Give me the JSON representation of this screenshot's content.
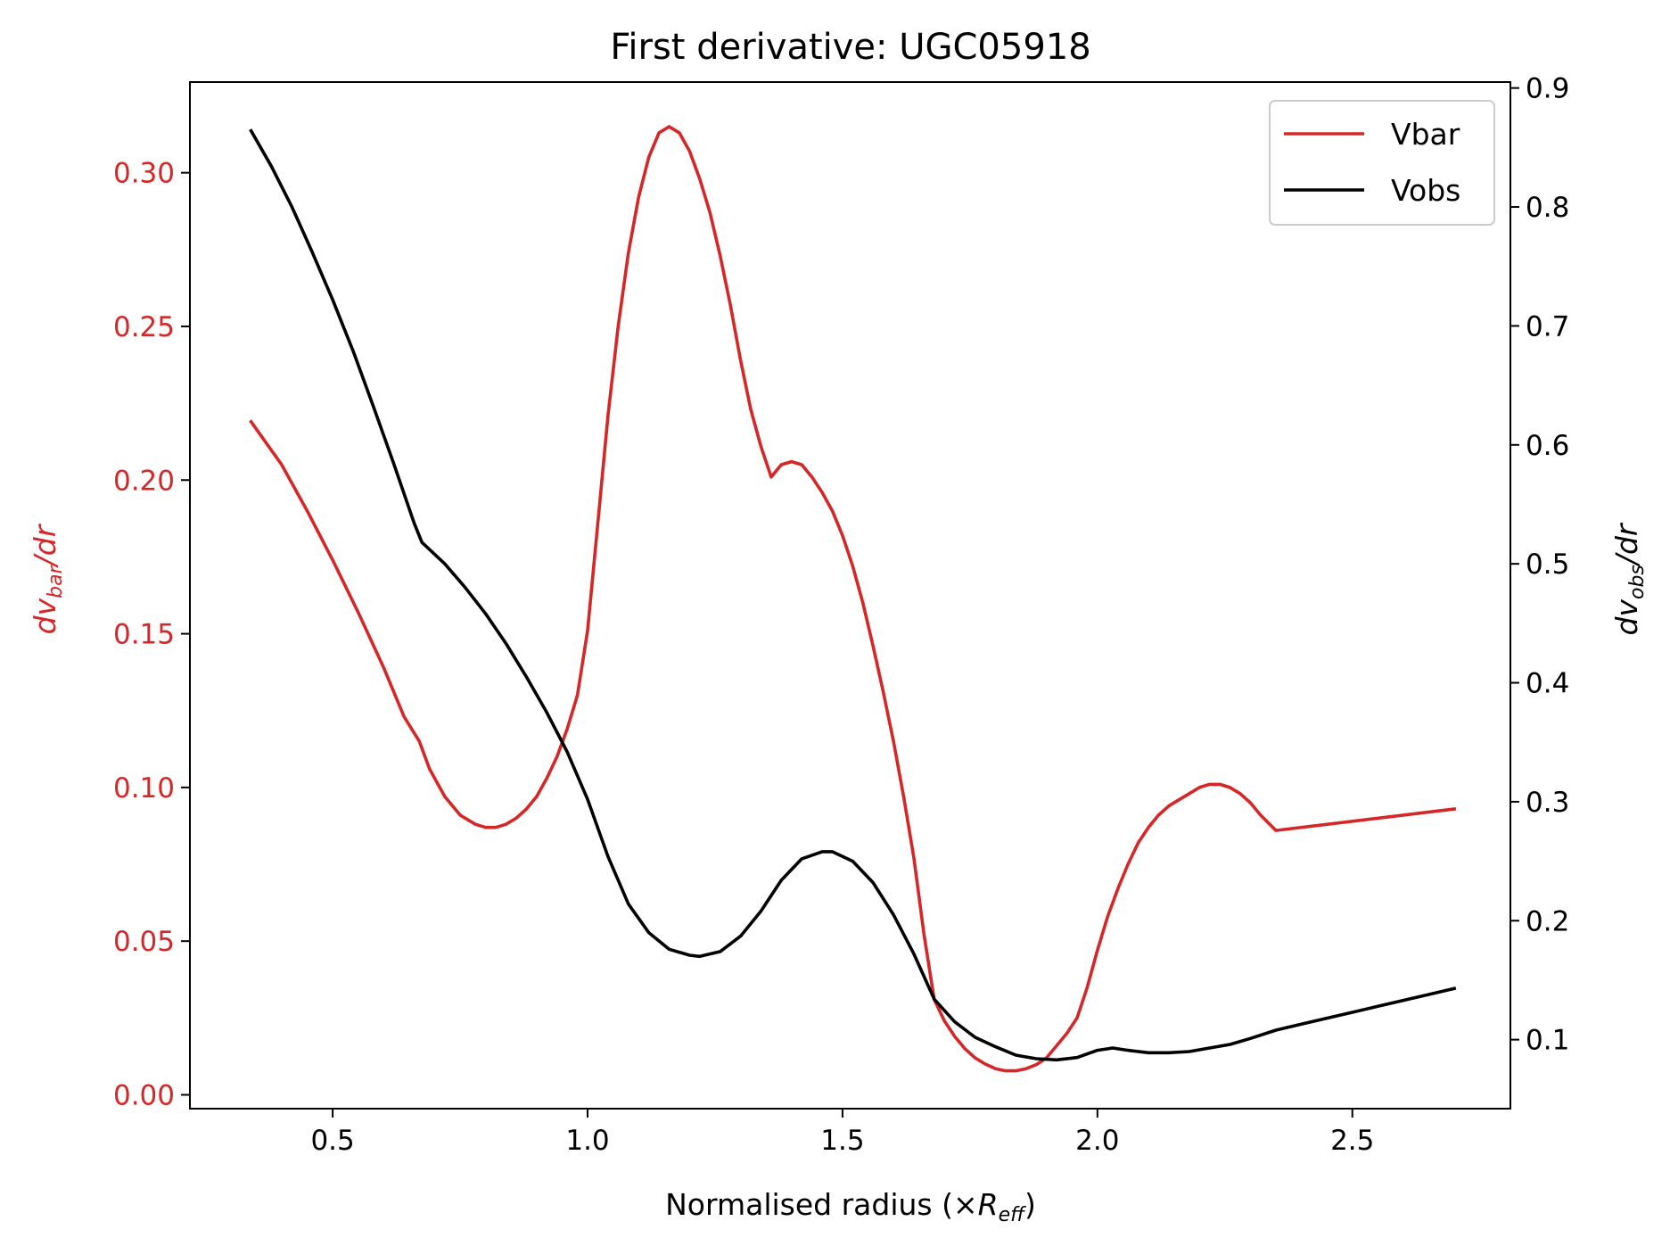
{
  "chart_data": {
    "type": "line",
    "title": "First derivative: UGC05918",
    "xlabel": {
      "prefix": "Normalised radius (×",
      "var": "R",
      "sub": "eff",
      "suffix": ")"
    },
    "ylabel_left": {
      "d": "d",
      "var": "v",
      "sub": "bar",
      "tail": "/dr"
    },
    "ylabel_right": {
      "d": "d",
      "var": "v",
      "sub": "obs",
      "tail": "/dr"
    },
    "xlim": [
      0.22,
      2.81
    ],
    "ylim_left": [
      -0.0045,
      0.3295
    ],
    "ylim_right": [
      0.042,
      0.905
    ],
    "xticks": [
      0.5,
      1.0,
      1.5,
      2.0,
      2.5
    ],
    "xtick_labels": [
      "0.5",
      "1.0",
      "1.5",
      "2.0",
      "2.5"
    ],
    "yticks_left": [
      0.0,
      0.05,
      0.1,
      0.15,
      0.2,
      0.25,
      0.3
    ],
    "ytick_labels_left": [
      "0.00",
      "0.05",
      "0.10",
      "0.15",
      "0.20",
      "0.25",
      "0.30"
    ],
    "yticks_right": [
      0.1,
      0.2,
      0.3,
      0.4,
      0.5,
      0.6,
      0.7,
      0.8,
      0.9
    ],
    "ytick_labels_right": [
      "0.1",
      "0.2",
      "0.3",
      "0.4",
      "0.5",
      "0.6",
      "0.7",
      "0.8",
      "0.9"
    ],
    "legend_position": "top-right",
    "grid": false,
    "series": [
      {
        "name": "Vbar",
        "axis": "left",
        "color": "#d62728",
        "x": [
          0.34,
          0.4,
          0.45,
          0.5,
          0.55,
          0.6,
          0.64,
          0.67,
          0.69,
          0.72,
          0.75,
          0.78,
          0.8,
          0.82,
          0.84,
          0.86,
          0.88,
          0.9,
          0.92,
          0.94,
          0.96,
          0.98,
          1.0,
          1.02,
          1.04,
          1.06,
          1.08,
          1.1,
          1.12,
          1.14,
          1.16,
          1.18,
          1.2,
          1.22,
          1.24,
          1.26,
          1.28,
          1.3,
          1.32,
          1.34,
          1.36,
          1.38,
          1.4,
          1.42,
          1.44,
          1.46,
          1.48,
          1.5,
          1.52,
          1.54,
          1.56,
          1.58,
          1.6,
          1.62,
          1.64,
          1.66,
          1.68,
          1.7,
          1.72,
          1.74,
          1.76,
          1.78,
          1.8,
          1.82,
          1.84,
          1.86,
          1.88,
          1.9,
          1.92,
          1.94,
          1.96,
          1.98,
          2.0,
          2.02,
          2.04,
          2.06,
          2.08,
          2.1,
          2.12,
          2.14,
          2.16,
          2.18,
          2.2,
          2.22,
          2.24,
          2.26,
          2.28,
          2.3,
          2.32,
          2.35,
          2.7
        ],
        "values": [
          0.219,
          0.205,
          0.19,
          0.174,
          0.157,
          0.139,
          0.123,
          0.115,
          0.106,
          0.097,
          0.091,
          0.088,
          0.087,
          0.087,
          0.088,
          0.09,
          0.093,
          0.097,
          0.103,
          0.11,
          0.119,
          0.13,
          0.151,
          0.186,
          0.221,
          0.25,
          0.274,
          0.292,
          0.305,
          0.313,
          0.315,
          0.313,
          0.307,
          0.298,
          0.287,
          0.273,
          0.257,
          0.239,
          0.223,
          0.211,
          0.201,
          0.205,
          0.206,
          0.205,
          0.201,
          0.196,
          0.19,
          0.182,
          0.172,
          0.16,
          0.146,
          0.131,
          0.115,
          0.097,
          0.077,
          0.052,
          0.031,
          0.024,
          0.019,
          0.015,
          0.012,
          0.01,
          0.0085,
          0.0078,
          0.0078,
          0.0085,
          0.0098,
          0.012,
          0.016,
          0.02,
          0.025,
          0.035,
          0.047,
          0.058,
          0.067,
          0.075,
          0.082,
          0.087,
          0.091,
          0.094,
          0.096,
          0.098,
          0.1,
          0.101,
          0.101,
          0.1,
          0.098,
          0.095,
          0.091,
          0.086,
          0.093
        ]
      },
      {
        "name": "Vobs",
        "axis": "right",
        "color": "#000000",
        "x": [
          0.34,
          0.38,
          0.42,
          0.46,
          0.5,
          0.54,
          0.58,
          0.62,
          0.66,
          0.675,
          0.72,
          0.76,
          0.8,
          0.84,
          0.88,
          0.92,
          0.96,
          1.0,
          1.04,
          1.08,
          1.12,
          1.16,
          1.2,
          1.22,
          1.26,
          1.3,
          1.34,
          1.38,
          1.42,
          1.46,
          1.48,
          1.52,
          1.56,
          1.6,
          1.64,
          1.68,
          1.72,
          1.76,
          1.8,
          1.84,
          1.88,
          1.92,
          1.96,
          2.0,
          2.03,
          2.06,
          2.1,
          2.14,
          2.18,
          2.22,
          2.26,
          2.3,
          2.35,
          2.4,
          2.45,
          2.5,
          2.55,
          2.6,
          2.65,
          2.7
        ],
        "values": [
          0.864,
          0.834,
          0.8,
          0.762,
          0.722,
          0.679,
          0.632,
          0.584,
          0.534,
          0.518,
          0.5,
          0.48,
          0.458,
          0.433,
          0.405,
          0.375,
          0.342,
          0.302,
          0.254,
          0.214,
          0.19,
          0.176,
          0.171,
          0.17,
          0.174,
          0.187,
          0.208,
          0.234,
          0.252,
          0.258,
          0.258,
          0.25,
          0.232,
          0.205,
          0.172,
          0.134,
          0.115,
          0.102,
          0.094,
          0.087,
          0.084,
          0.083,
          0.085,
          0.091,
          0.093,
          0.091,
          0.089,
          0.089,
          0.09,
          0.093,
          0.096,
          0.101,
          0.108,
          0.113,
          0.118,
          0.123,
          0.128,
          0.133,
          0.138,
          0.143
        ]
      }
    ]
  }
}
